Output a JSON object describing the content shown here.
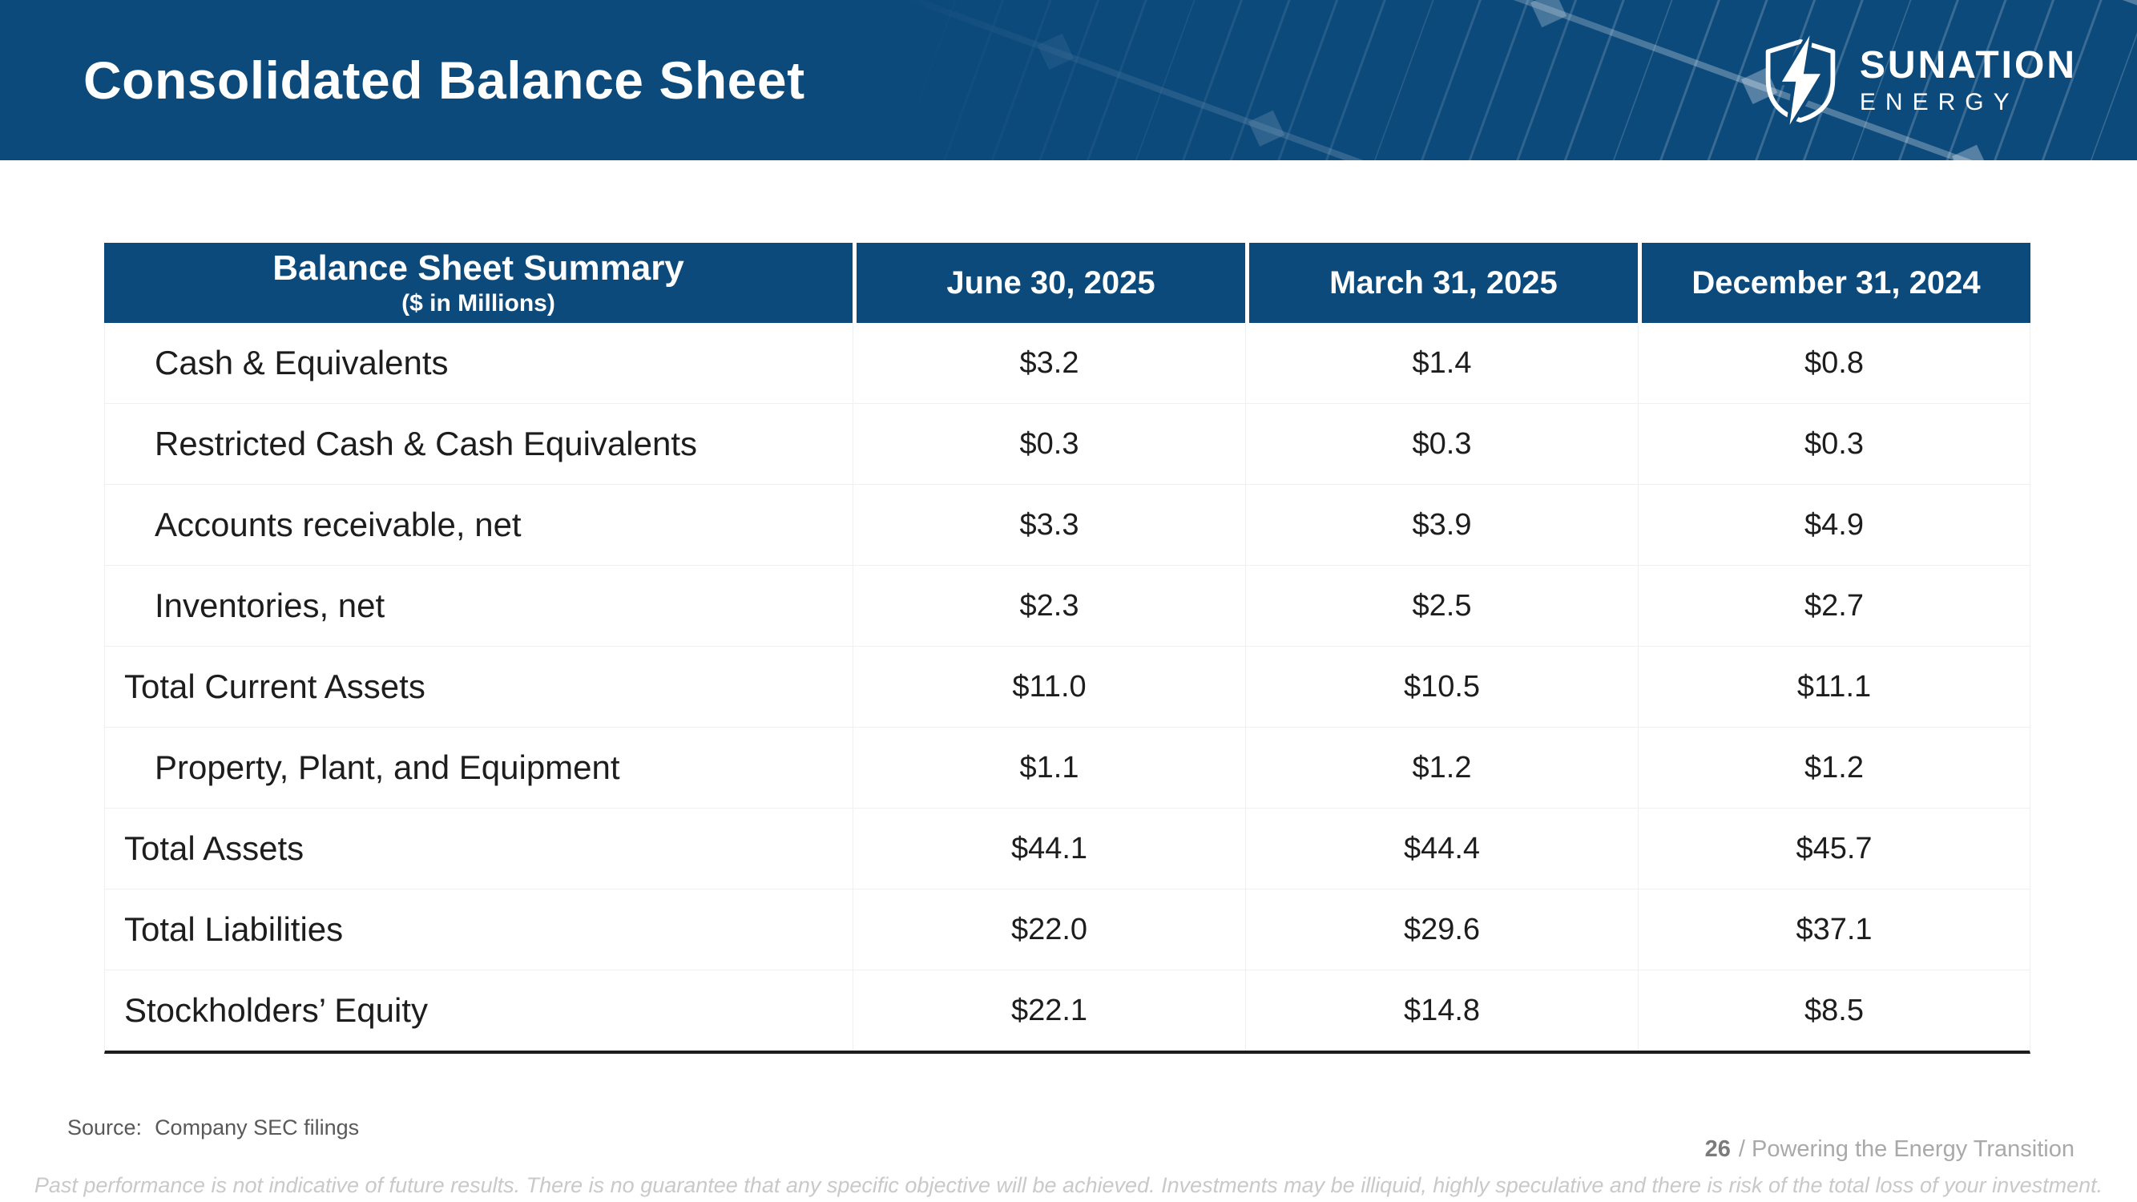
{
  "header": {
    "title": "Consolidated Balance Sheet",
    "logo": {
      "name": "SUNATION",
      "sub": "ENERGY"
    }
  },
  "table": {
    "title": "Balance Sheet Summary",
    "subtitle": "($ in Millions)",
    "columns": [
      "June 30, 2025",
      "March 31, 2025",
      "December 31, 2024"
    ],
    "rows": [
      {
        "label": "Cash & Equivalents",
        "indent": true,
        "values": [
          "$3.2",
          "$1.4",
          "$0.8"
        ]
      },
      {
        "label": "Restricted Cash & Cash Equivalents",
        "indent": true,
        "values": [
          "$0.3",
          "$0.3",
          "$0.3"
        ]
      },
      {
        "label": "Accounts receivable, net",
        "indent": true,
        "values": [
          "$3.3",
          "$3.9",
          "$4.9"
        ]
      },
      {
        "label": "Inventories, net",
        "indent": true,
        "values": [
          "$2.3",
          "$2.5",
          "$2.7"
        ]
      },
      {
        "label": "Total Current Assets",
        "indent": false,
        "values": [
          "$11.0",
          "$10.5",
          "$11.1"
        ]
      },
      {
        "label": "Property, Plant, and Equipment",
        "indent": true,
        "values": [
          "$1.1",
          "$1.2",
          "$1.2"
        ]
      },
      {
        "label": "Total Assets",
        "indent": false,
        "values": [
          "$44.1",
          "$44.4",
          "$45.7"
        ]
      },
      {
        "label": "Total Liabilities",
        "indent": false,
        "values": [
          "$22.0",
          "$29.6",
          "$37.1"
        ]
      },
      {
        "label": "Stockholders’ Equity",
        "indent": false,
        "values": [
          "$22.1",
          "$14.8",
          "$8.5"
        ]
      }
    ]
  },
  "footer": {
    "source_label": "Source:",
    "source_value": "Company SEC filings",
    "page_number": "26",
    "tagline": "/ Powering the Energy Transition",
    "disclaimer": "Past performance is not indicative of future results. There is no guarantee that any specific objective will be achieved. Investments may be illiquid, highly speculative and there is risk of the total loss of your investment."
  },
  "colors": {
    "banner_blue": "#0d4a7c",
    "table_header_blue": "#0d4a7c",
    "grid_line": "#f0f0f0",
    "table_bottom_rule": "#1c1c1c",
    "text_dark": "#1d1d1d",
    "source_gray": "#595959",
    "page_gray": "#7b7b7b",
    "tagline_gray": "#a9a9a9",
    "disclaimer_gray": "#c9c9c9"
  }
}
